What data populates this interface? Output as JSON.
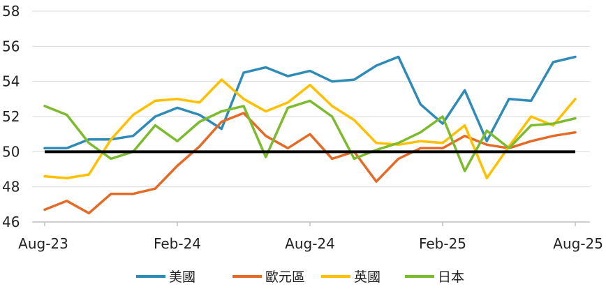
{
  "chart_data": {
    "type": "line",
    "title": "",
    "xlabel": "",
    "ylabel": "",
    "ylim": [
      46,
      58
    ],
    "yticks": [
      46,
      48,
      50,
      52,
      54,
      56,
      58
    ],
    "x": [
      "Aug-23",
      "Sep-23",
      "Oct-23",
      "Nov-23",
      "Dec-23",
      "Jan-24",
      "Feb-24",
      "Mar-24",
      "Apr-24",
      "May-24",
      "Jun-24",
      "Jul-24",
      "Aug-24",
      "Sep-24",
      "Oct-24",
      "Nov-24",
      "Dec-24",
      "Jan-25",
      "Feb-25",
      "Mar-25",
      "Apr-25",
      "May-25",
      "Jun-25",
      "Jul-25",
      "Aug-25"
    ],
    "xtick_labels": [
      "Aug-23",
      "Feb-24",
      "Aug-24",
      "Feb-25",
      "Aug-25"
    ],
    "xtick_indices": [
      0,
      6,
      12,
      18,
      24
    ],
    "grid": "horizontal",
    "legend_position": "bottom",
    "reference_line": 50,
    "series": [
      {
        "name": "美國",
        "color": "#2E8BB8",
        "values": [
          50.2,
          50.2,
          50.7,
          50.7,
          50.9,
          52.0,
          52.5,
          52.1,
          51.3,
          54.5,
          54.8,
          54.3,
          54.6,
          54.0,
          54.1,
          54.9,
          55.4,
          52.7,
          51.6,
          53.5,
          50.6,
          53.0,
          52.9,
          55.1,
          55.4
        ]
      },
      {
        "name": "歐元區",
        "color": "#E56A25",
        "values": [
          46.7,
          47.2,
          46.5,
          47.6,
          47.6,
          47.9,
          49.2,
          50.3,
          51.7,
          52.2,
          50.9,
          50.2,
          51.0,
          49.6,
          50.0,
          48.3,
          49.6,
          50.2,
          50.2,
          50.9,
          50.4,
          50.2,
          50.6,
          50.9,
          51.1
        ]
      },
      {
        "name": "英國",
        "color": "#FFC000",
        "values": [
          48.6,
          48.5,
          48.7,
          50.7,
          52.1,
          52.9,
          53.0,
          52.8,
          54.1,
          53.0,
          52.3,
          52.8,
          53.8,
          52.6,
          51.8,
          50.5,
          50.4,
          50.6,
          50.5,
          51.5,
          48.5,
          50.3,
          52.0,
          51.5,
          53.0
        ]
      },
      {
        "name": "日本",
        "color": "#7DBB2E",
        "values": [
          52.6,
          52.1,
          50.5,
          49.6,
          50.0,
          51.5,
          50.6,
          51.7,
          52.3,
          52.6,
          49.7,
          52.5,
          52.9,
          52.0,
          49.6,
          50.1,
          50.5,
          51.1,
          52.0,
          48.9,
          51.2,
          50.2,
          51.5,
          51.6,
          51.9
        ]
      }
    ]
  }
}
